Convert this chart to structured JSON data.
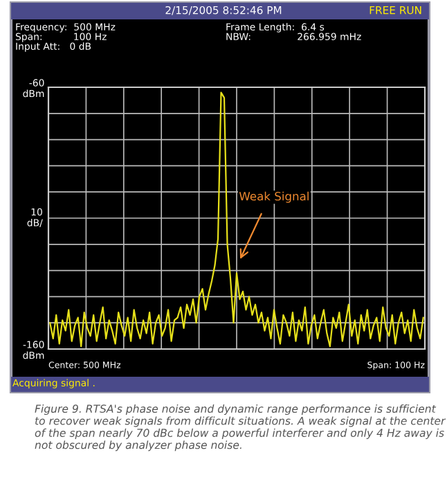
{
  "chart_data": {
    "type": "line",
    "categories": [
      null,
      null,
      null,
      null,
      null,
      null,
      null,
      null,
      null,
      null,
      null,
      null,
      null,
      null,
      null,
      null,
      null,
      null,
      null,
      null,
      null,
      null,
      null,
      null,
      null,
      null,
      null,
      null,
      null,
      null,
      null,
      null,
      null,
      null,
      null,
      null,
      null,
      null,
      null,
      null,
      null,
      null,
      null,
      null,
      null,
      null,
      null,
      null,
      null,
      null,
      null,
      null,
      null,
      null,
      null,
      null,
      null,
      null,
      null,
      null,
      null,
      null,
      null,
      null,
      null,
      null,
      null,
      null,
      null,
      null,
      null,
      null,
      null,
      null,
      null,
      null,
      null,
      null,
      null,
      null,
      null,
      null,
      null,
      null,
      null,
      null,
      null,
      null,
      null,
      null,
      null,
      null,
      null,
      null,
      null,
      null,
      null,
      null,
      null,
      null,
      null,
      null,
      null,
      null,
      null,
      null,
      null,
      null,
      null,
      null,
      null,
      null,
      null,
      null,
      null,
      null,
      null,
      null,
      null,
      null,
      null
    ],
    "series": [
      {
        "color": "#e6e01a",
        "values": [
          -150,
          -156,
          -147,
          -158,
          -149,
          -153,
          -145,
          -157,
          -151,
          -148,
          -159,
          -146,
          -152,
          -155,
          -147,
          -157,
          -150,
          -144,
          -156,
          -149,
          -153,
          -158,
          -146,
          -151,
          -155,
          -148,
          -157,
          -145,
          -152,
          -156,
          -149,
          -154,
          -146,
          -158,
          -150,
          -147,
          -155,
          -152,
          -145,
          -157,
          -149,
          -148,
          -144,
          -152,
          -143,
          -147,
          -141,
          -150,
          -140,
          -137,
          -145,
          -139,
          -134,
          -128,
          -118,
          -62,
          -64,
          -120,
          -133,
          -150,
          -131,
          -141,
          -138,
          -145,
          -140,
          -147,
          -143,
          -150,
          -146,
          -153,
          -148,
          -156,
          -145,
          -152,
          -158,
          -147,
          -150,
          -155,
          -146,
          -157,
          -149,
          -153,
          -144,
          -158,
          -151,
          -147,
          -156,
          -150,
          -145,
          -154,
          -159,
          -148,
          -152,
          -146,
          -157,
          -150,
          -143,
          -155,
          -149,
          -158,
          -147,
          -153,
          -145,
          -156,
          -151,
          -148,
          -157,
          -144,
          -152,
          -155,
          -147,
          -158,
          -150,
          -146,
          -154,
          -149,
          -157,
          -145,
          -152,
          -156,
          -148
        ]
      }
    ],
    "ylim": [
      -160,
      -60
    ],
    "yticks": [
      {
        "value": -60,
        "label": "-60\ndBm"
      },
      {
        "value": -70,
        "label": null
      },
      {
        "value": -80,
        "label": null
      },
      {
        "value": -90,
        "label": null
      },
      {
        "value": -100,
        "label": null
      },
      {
        "value": -110,
        "label": null
      },
      {
        "value": -120,
        "label": null
      },
      {
        "value": -130,
        "label": null
      },
      {
        "value": -140,
        "label": null
      },
      {
        "value": -150,
        "label": null
      },
      {
        "value": -160,
        "label": "-160\ndBm"
      }
    ],
    "ylabel": "10\ndB/",
    "grid": true,
    "marker": "none",
    "line_style": "solid",
    "annotations": [
      "2/15/2005 8:52:46 PM",
      "FREE RUN",
      "Frequency:  500 MHz",
      "Span:          100 Hz",
      "Input Att:   0 dB",
      "Frame Length:  6.4 s",
      "NBW:               266.959 mHz",
      "Weak Signal",
      "Center: 500 MHz",
      "Span: 100 Hz",
      "Acquiring signal .",
      "Figure 9. RTSA's phase noise and dynamic range performance is sufficient to recover weak signals from difficult situations. A weak signal at the center of the span nearly 70 dBc below a powerful interferer and only 4 Hz away is not obscured by analyzer phase noise."
    ]
  }
}
